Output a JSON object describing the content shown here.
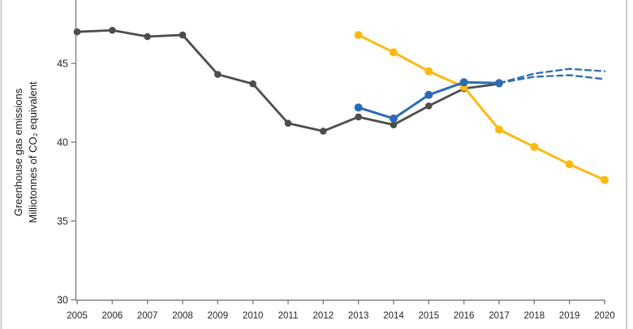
{
  "figure": {
    "background": "#ffffff",
    "border_color": "#c9c9c9"
  },
  "chart_data": {
    "type": "line",
    "title": "",
    "ylabel_line1": "Greenhouse gas emissions",
    "ylabel_line2": "Milliotonnes of CO₂ equivalent",
    "xlabel": "",
    "x_years": [
      2005,
      2006,
      2007,
      2008,
      2009,
      2010,
      2011,
      2012,
      2013,
      2014,
      2015,
      2016,
      2017,
      2018,
      2019,
      2020
    ],
    "y_ticks": [
      45,
      40,
      35,
      30
    ],
    "xlim": [
      2005,
      2020
    ],
    "ylim_visible": [
      30,
      49
    ],
    "grid": false,
    "legend": "none",
    "axis_color": "#7f7f7f",
    "tick_label_color": "#262626",
    "series": [
      {
        "name": "dark-gray-line",
        "color": "#4d4d4d",
        "dash": "none",
        "marker_r": 4.3,
        "width": 2.8,
        "x": [
          2005,
          2006,
          2007,
          2008,
          2009,
          2010,
          2011,
          2012,
          2013,
          2014,
          2015,
          2016,
          2017
        ],
        "values": [
          47.0,
          47.1,
          46.7,
          46.8,
          44.3,
          43.7,
          41.2,
          40.7,
          41.6,
          41.1,
          42.3,
          43.4,
          43.7
        ]
      },
      {
        "name": "yellow-line",
        "color": "#fdb913",
        "dash": "none",
        "marker_r": 5,
        "width": 3,
        "x": [
          2013,
          2014,
          2015,
          2016,
          2017,
          2018,
          2019,
          2020
        ],
        "values": [
          46.8,
          45.7,
          44.5,
          43.5,
          40.8,
          39.7,
          38.6,
          37.6
        ]
      },
      {
        "name": "blue-line",
        "color": "#2d6cb5",
        "dash": "none",
        "marker_r": 5,
        "width": 3,
        "x": [
          2013,
          2014,
          2015,
          2016,
          2017
        ],
        "values": [
          42.2,
          41.5,
          43.0,
          43.8,
          43.75
        ]
      },
      {
        "name": "blue-dashed-upper",
        "color": "#2d6cb5",
        "dash": "7 5",
        "marker_r": 0,
        "width": 2.3,
        "x": [
          2017,
          2018,
          2019,
          2020
        ],
        "values": [
          43.75,
          44.35,
          44.65,
          44.5
        ]
      },
      {
        "name": "blue-dashed-lower",
        "color": "#2d6cb5",
        "dash": "7 5",
        "marker_r": 0,
        "width": 2.3,
        "x": [
          2017,
          2018,
          2019,
          2020
        ],
        "values": [
          43.75,
          44.15,
          44.25,
          44.0
        ]
      }
    ]
  }
}
